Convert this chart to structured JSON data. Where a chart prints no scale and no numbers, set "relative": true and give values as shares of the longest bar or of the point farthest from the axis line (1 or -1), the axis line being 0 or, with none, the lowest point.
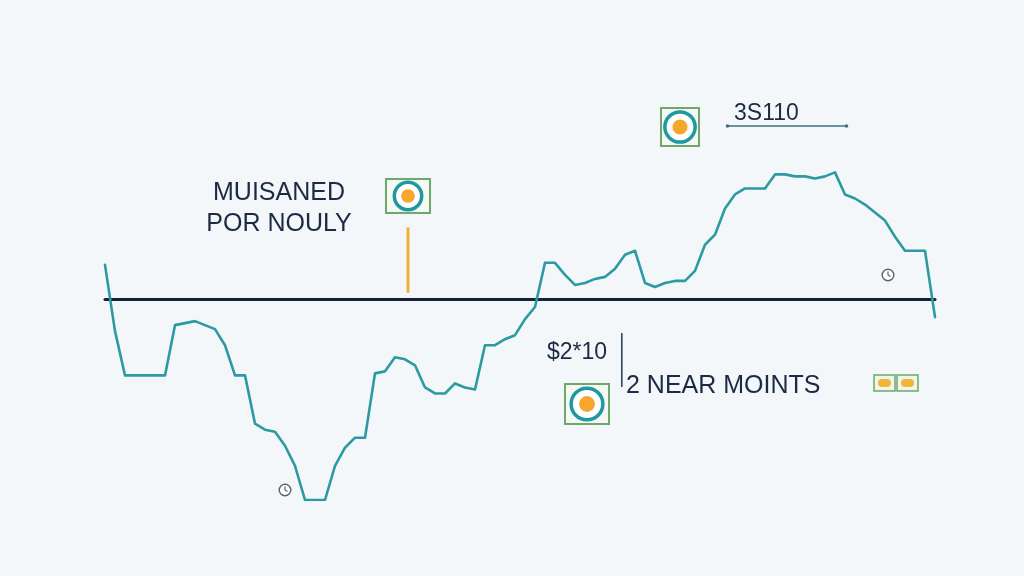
{
  "chart_data": {
    "type": "line",
    "relative": true,
    "categories": [
      null,
      null,
      null,
      null,
      null,
      null,
      null,
      null,
      null,
      null,
      null,
      null,
      null,
      null,
      null,
      null,
      null,
      null,
      null,
      null,
      null,
      null,
      null,
      null,
      null,
      null,
      null,
      null,
      null,
      null,
      null,
      null,
      null,
      null,
      null,
      null,
      null,
      null,
      null,
      null,
      null,
      null,
      null,
      null,
      null,
      null,
      null,
      null,
      null,
      null,
      null,
      null,
      null,
      null,
      null,
      null,
      null,
      null,
      null,
      null,
      null,
      null,
      null,
      null,
      null,
      null,
      null,
      null,
      null,
      null,
      null,
      null,
      null,
      null,
      null,
      null,
      null,
      null,
      null,
      null,
      null,
      null,
      null,
      null
    ],
    "series": [
      {
        "color": "#2b9aa3",
        "values": [
          0.17,
          -0.16,
          -0.38,
          -0.38,
          -0.38,
          -0.38,
          -0.38,
          -0.13,
          -0.12,
          -0.11,
          -0.13,
          -0.15,
          -0.23,
          -0.38,
          -0.38,
          -0.62,
          -0.65,
          -0.66,
          -0.73,
          -0.83,
          -1,
          -1,
          -1,
          -0.83,
          -0.74,
          -0.69,
          -0.69,
          -0.37,
          -0.36,
          -0.29,
          -0.3,
          -0.33,
          -0.44,
          -0.47,
          -0.47,
          -0.42,
          -0.44,
          -0.45,
          -0.23,
          -0.23,
          -0.2,
          -0.18,
          -0.1,
          -0.04,
          0.18,
          0.18,
          0.12,
          0.07,
          0.08,
          0.1,
          0.11,
          0.15,
          0.22,
          0.24,
          0.08,
          0.06,
          0.08,
          0.09,
          0.09,
          0.14,
          0.27,
          0.32,
          0.45,
          0.52,
          0.55,
          0.55,
          0.55,
          0.62,
          0.62,
          0.61,
          0.61,
          0.6,
          0.61,
          0.63,
          0.52,
          0.5,
          0.47,
          0.43,
          0.39,
          0.31,
          0.24,
          0.24,
          0.24,
          -0.09
        ]
      }
    ],
    "annotations": [
      "MUISANED POR NOULY",
      "3S110",
      "$2*10",
      "2 NEAR MOINTS"
    ]
  }
}
